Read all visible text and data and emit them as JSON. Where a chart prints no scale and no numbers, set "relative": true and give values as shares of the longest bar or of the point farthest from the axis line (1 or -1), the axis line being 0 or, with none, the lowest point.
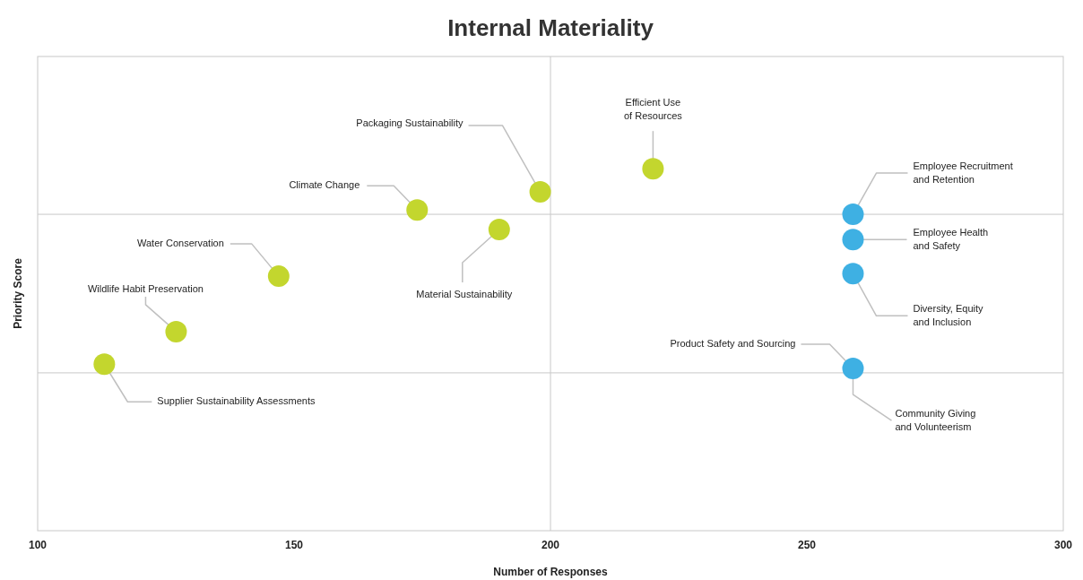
{
  "chart_data": {
    "type": "scatter",
    "title": "Internal Materiality",
    "xlabel": "Number of Responses",
    "ylabel": "Priority Score",
    "xlim": [
      100,
      300
    ],
    "xticks": [
      100,
      150,
      200,
      250,
      300
    ],
    "relative": true,
    "marker": "circle",
    "series": [
      {
        "color": "#c3d62e",
        "x": [
          220,
          198,
          174,
          190,
          147,
          127,
          113
        ],
        "values": [
          1,
          0.936,
          0.886,
          0.832,
          0.703,
          0.55,
          0.46
        ]
      },
      {
        "color": "#3eb0e3",
        "x": [
          259,
          259,
          259,
          259
        ],
        "values": [
          0.874,
          0.804,
          0.71,
          0.448
        ]
      }
    ],
    "ref_lines": [
      {
        "axis": "x",
        "value": 200,
        "color": "#c8c8c8"
      },
      {
        "axis": "y",
        "value": 0.874,
        "color": "#c8c8c8"
      },
      {
        "axis": "y",
        "value": 0.436,
        "color": "#c8c8c8"
      }
    ],
    "annotations": [
      {
        "text": "Efficient Use\nof Resources",
        "x": 220,
        "y": 1
      },
      {
        "text": "Packaging Sustainability",
        "x": 198,
        "y": 0.936
      },
      {
        "text": "Climate Change",
        "x": 174,
        "y": 0.886
      },
      {
        "text": "Material Sustainability",
        "x": 190,
        "y": 0.832
      },
      {
        "text": "Water Conservation",
        "x": 147,
        "y": 0.703
      },
      {
        "text": "Wildlife Habit Preservation",
        "x": 127,
        "y": 0.55
      },
      {
        "text": "Supplier Sustainability Assessments",
        "x": 113,
        "y": 0.46
      },
      {
        "text": "Employee Recruitment\nand Retention",
        "x": 259,
        "y": 0.874
      },
      {
        "text": "Employee Health\nand Safety",
        "x": 259,
        "y": 0.804
      },
      {
        "text": "Diversity, Equity\nand Inclusion",
        "x": 259,
        "y": 0.71
      },
      {
        "text": "Product Safety and Sourcing",
        "x": 259,
        "y": 0.448
      },
      {
        "text": "Community Giving\nand Volunteerism",
        "x": 259,
        "y": 0.448
      }
    ]
  }
}
